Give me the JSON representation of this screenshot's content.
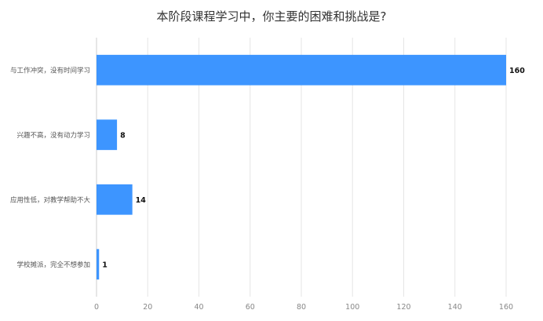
{
  "chart_data": {
    "type": "bar",
    "orientation": "horizontal",
    "title": "本阶段课程学习中，你主要的困难和挑战是?",
    "categories": [
      "与工作冲突，没有时间学习",
      "兴趣不高，没有动力学习",
      "应用性低，对教学帮助不大",
      "学校摊派，完全不想参加"
    ],
    "values": [
      160,
      8,
      14,
      1
    ],
    "xlim": [
      0,
      160
    ],
    "xticks": [
      "0",
      "20",
      "40",
      "60",
      "80",
      "100",
      "120",
      "140",
      "160"
    ],
    "grid": true,
    "bar_color": "#3d95ff"
  }
}
